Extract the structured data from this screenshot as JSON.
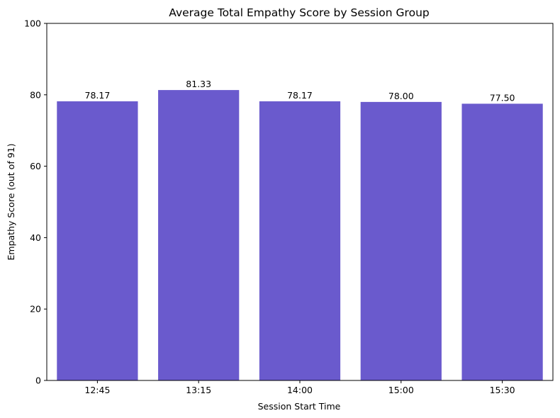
{
  "chart_data": {
    "type": "bar",
    "title": "Average Total Empathy Score by Session Group",
    "xlabel": "Session Start Time",
    "ylabel": "Empathy Score (out of 91)",
    "categories": [
      "12:45",
      "13:15",
      "14:00",
      "15:00",
      "15:30"
    ],
    "values": [
      78.17,
      81.33,
      78.17,
      78.0,
      77.5
    ],
    "value_labels": [
      "78.17",
      "81.33",
      "78.17",
      "78.00",
      "77.50"
    ],
    "ylim": [
      0,
      100
    ],
    "yticks": [
      0,
      20,
      40,
      60,
      80,
      100
    ],
    "ytick_labels": [
      "0",
      "20",
      "40",
      "60",
      "80",
      "100"
    ],
    "bar_color": "#6a5acd",
    "grid": false,
    "legend": "none"
  }
}
